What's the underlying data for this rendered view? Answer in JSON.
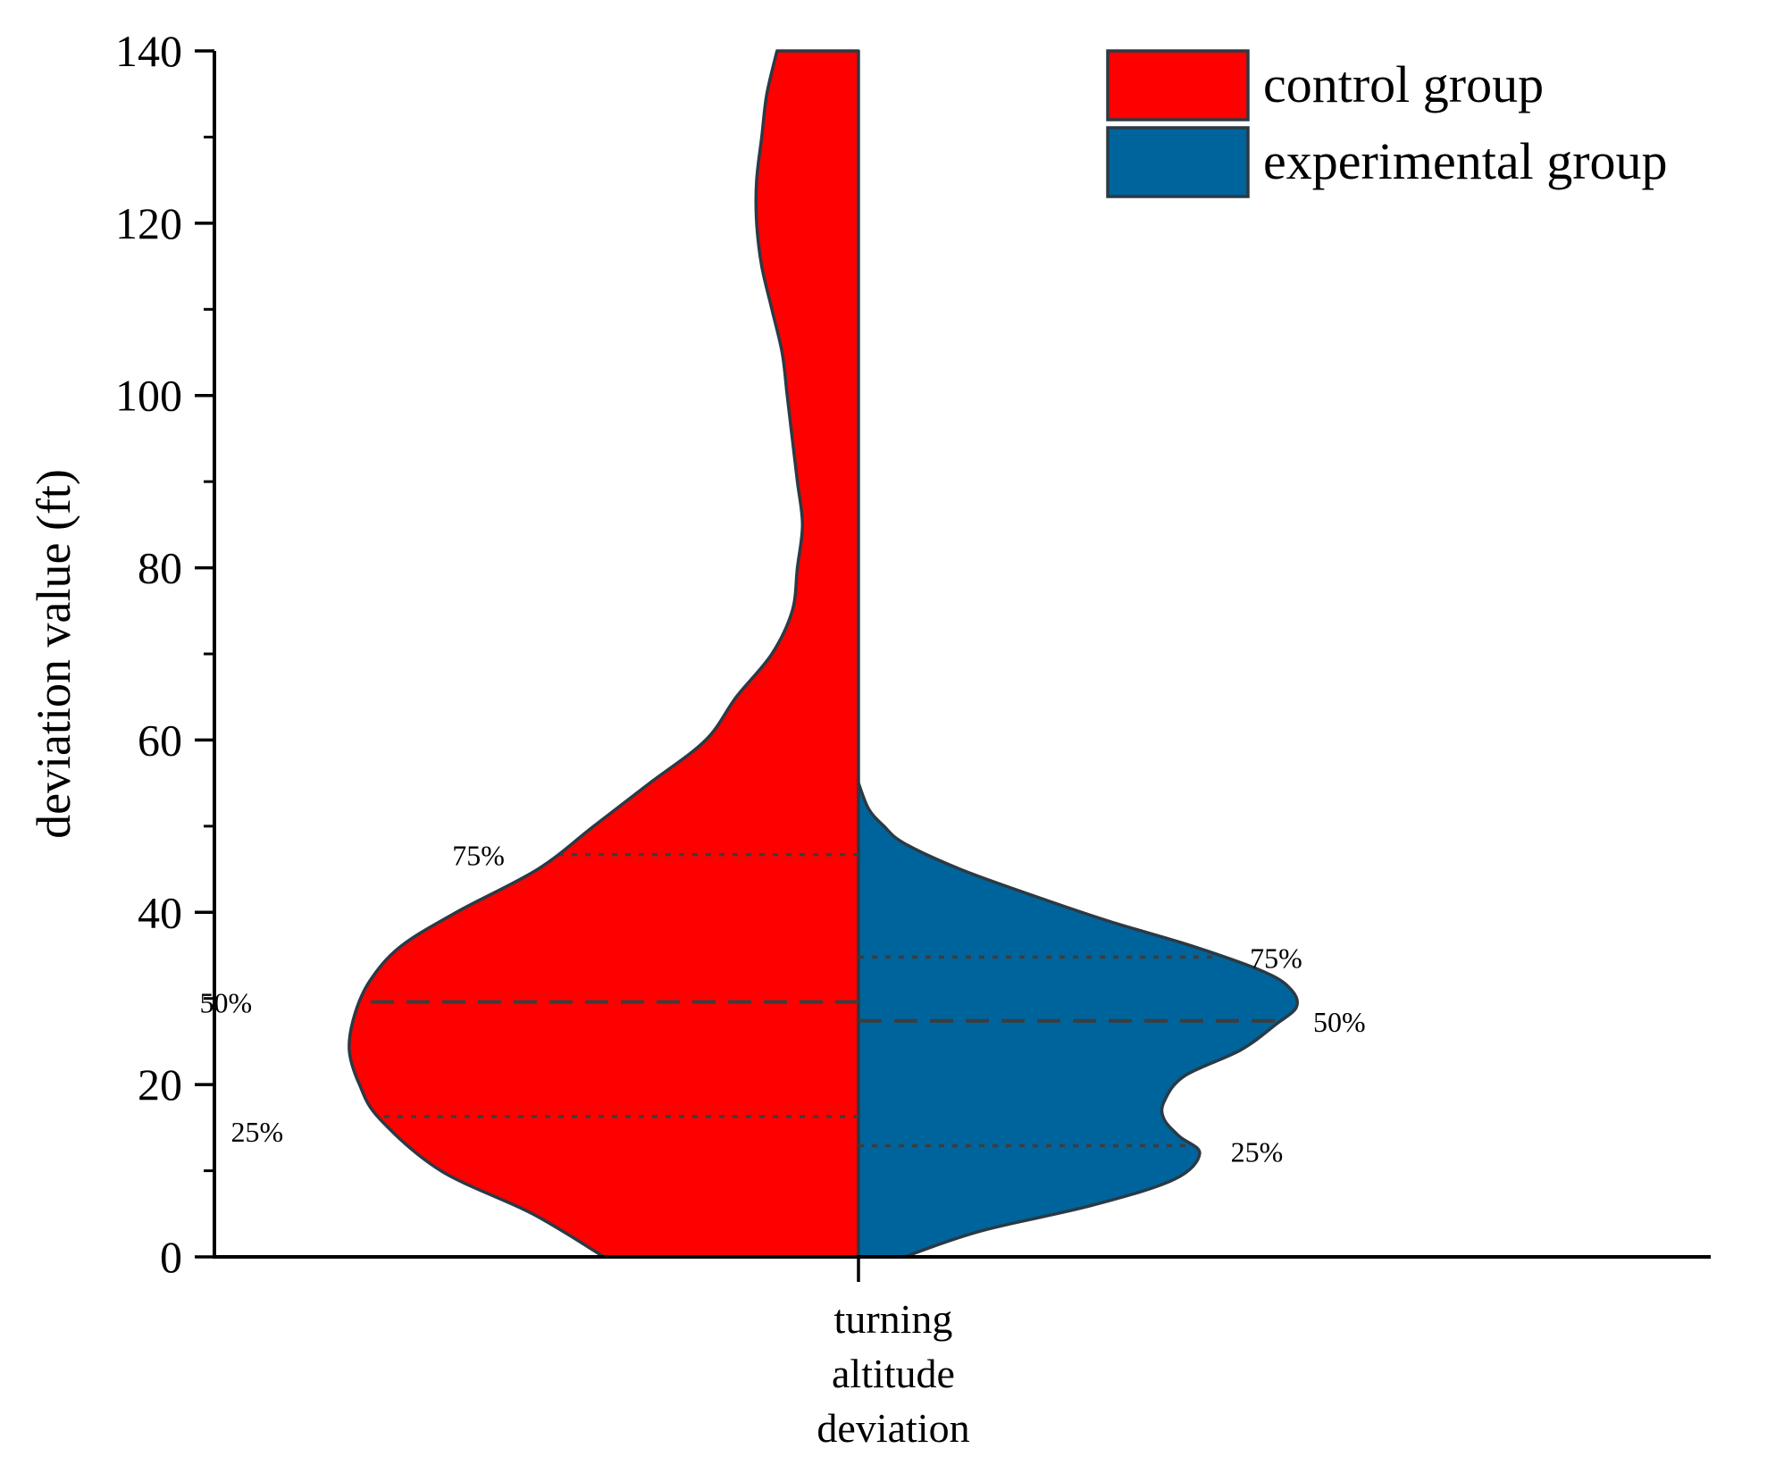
{
  "chart_data": {
    "type": "violin (split)",
    "ylabel": "deviation value (ft)",
    "ylim": [
      0,
      140
    ],
    "yticks": [
      0,
      20,
      40,
      60,
      80,
      100,
      120,
      140
    ],
    "category_label_lines": [
      "turning",
      "altitude",
      "deviation"
    ],
    "legend": {
      "position": "top-right"
    },
    "series": [
      {
        "name": "control group",
        "side": "left",
        "color": "#ff0000",
        "density_profile": [
          [
            0,
            0.5
          ],
          [
            5,
            0.64
          ],
          [
            10,
            0.82
          ],
          [
            16,
            0.94
          ],
          [
            20,
            0.98
          ],
          [
            24,
            1.0
          ],
          [
            28,
            0.99
          ],
          [
            32,
            0.96
          ],
          [
            36,
            0.9
          ],
          [
            40,
            0.79
          ],
          [
            45,
            0.63
          ],
          [
            50,
            0.52
          ],
          [
            55,
            0.41
          ],
          [
            60,
            0.3
          ],
          [
            65,
            0.24
          ],
          [
            70,
            0.17
          ],
          [
            75,
            0.13
          ],
          [
            80,
            0.12
          ],
          [
            85,
            0.11
          ],
          [
            90,
            0.12
          ],
          [
            95,
            0.13
          ],
          [
            100,
            0.14
          ],
          [
            105,
            0.15
          ],
          [
            110,
            0.17
          ],
          [
            115,
            0.19
          ],
          [
            120,
            0.2
          ],
          [
            125,
            0.2
          ],
          [
            130,
            0.19
          ],
          [
            135,
            0.18
          ],
          [
            140,
            0.16
          ]
        ],
        "quartiles": [
          {
            "label": "25%",
            "value": 16.3,
            "style": "dotted"
          },
          {
            "label": "50%",
            "value": 29.6,
            "style": "dashed"
          },
          {
            "label": "75%",
            "value": 46.7,
            "style": "dotted"
          }
        ]
      },
      {
        "name": "experimental group",
        "side": "right",
        "color": "#00649c",
        "density_profile": [
          [
            0,
            0.09
          ],
          [
            3,
            0.24
          ],
          [
            6,
            0.46
          ],
          [
            9,
            0.62
          ],
          [
            12,
            0.67
          ],
          [
            14,
            0.63
          ],
          [
            16,
            0.6
          ],
          [
            18,
            0.6
          ],
          [
            21,
            0.64
          ],
          [
            24,
            0.75
          ],
          [
            27,
            0.82
          ],
          [
            29,
            0.86
          ],
          [
            31,
            0.85
          ],
          [
            33,
            0.8
          ],
          [
            36,
            0.66
          ],
          [
            39,
            0.49
          ],
          [
            42,
            0.34
          ],
          [
            45,
            0.2
          ],
          [
            48,
            0.09
          ],
          [
            50,
            0.05
          ],
          [
            52,
            0.02
          ],
          [
            55,
            0.0
          ]
        ],
        "quartiles": [
          {
            "label": "25%",
            "value": 12.9,
            "style": "dotted"
          },
          {
            "label": "50%",
            "value": 27.4,
            "style": "dashed"
          },
          {
            "label": "75%",
            "value": 34.8,
            "style": "dotted"
          }
        ]
      }
    ]
  }
}
